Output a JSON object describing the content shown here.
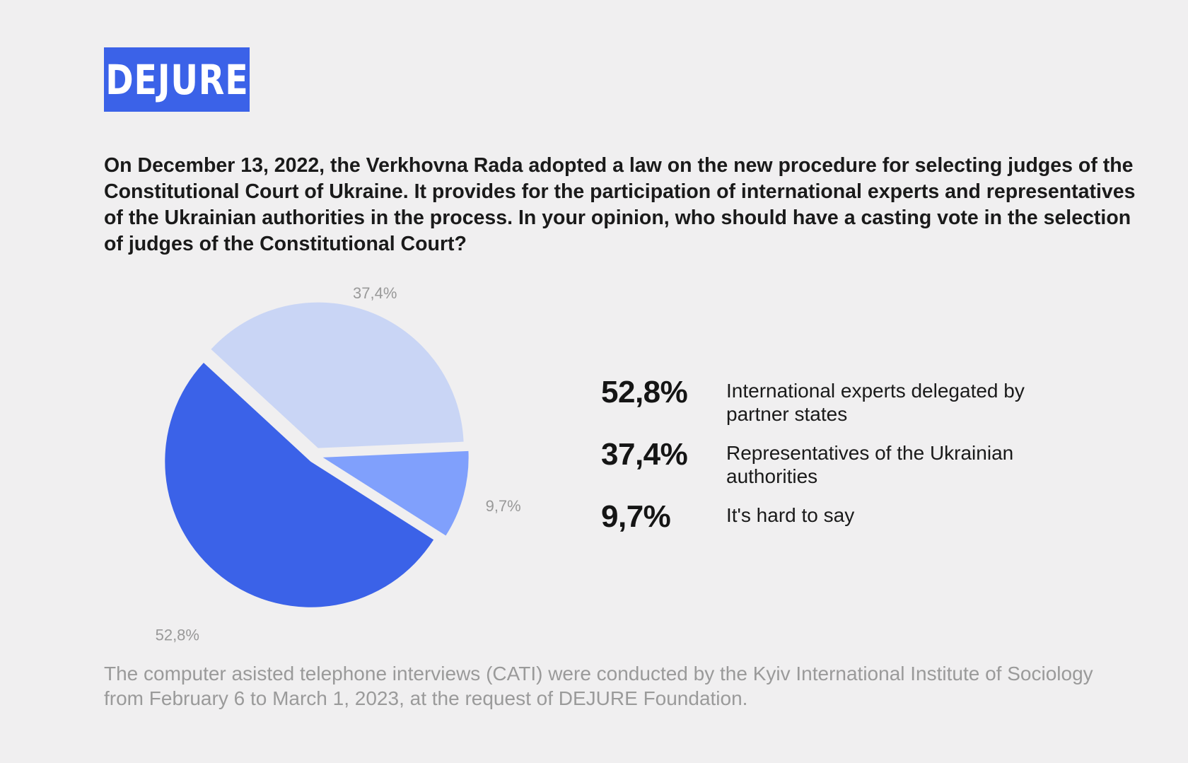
{
  "logo": {
    "text": "DEJURE"
  },
  "question": "On December 13, 2022, the Verkhovna Rada adopted a law on the new procedure for selecting judges of the Constitutional Court of Ukraine. It provides for the participation of international experts and representatives of the Ukrainian authorities in the process. In your opinion, who should have a casting vote in the selection of judges of the Constitutional Court?",
  "chart_data": {
    "type": "pie",
    "title": "",
    "slices": [
      {
        "label": "International experts delegated by partner states",
        "value": 52.8,
        "display": "52,8%",
        "color": "#3b62e8"
      },
      {
        "label": "Representatives of the Ukrainian authorities",
        "value": 37.4,
        "display": "37,4%",
        "color": "#c9d5f5"
      },
      {
        "label": "It's hard to say",
        "value": 9.7,
        "display": "9,7%",
        "color": "#80a0fc"
      }
    ],
    "legend_placement": "right"
  },
  "footnote": "The computer asisted telephone interviews (CATI) were conducted by the Kyiv International Institute of Sociology from February 6 to March 1, 2023, at the request of DEJURE Foundation.",
  "colors": {
    "background": "#f0eff0",
    "accent": "#3b62e8"
  }
}
